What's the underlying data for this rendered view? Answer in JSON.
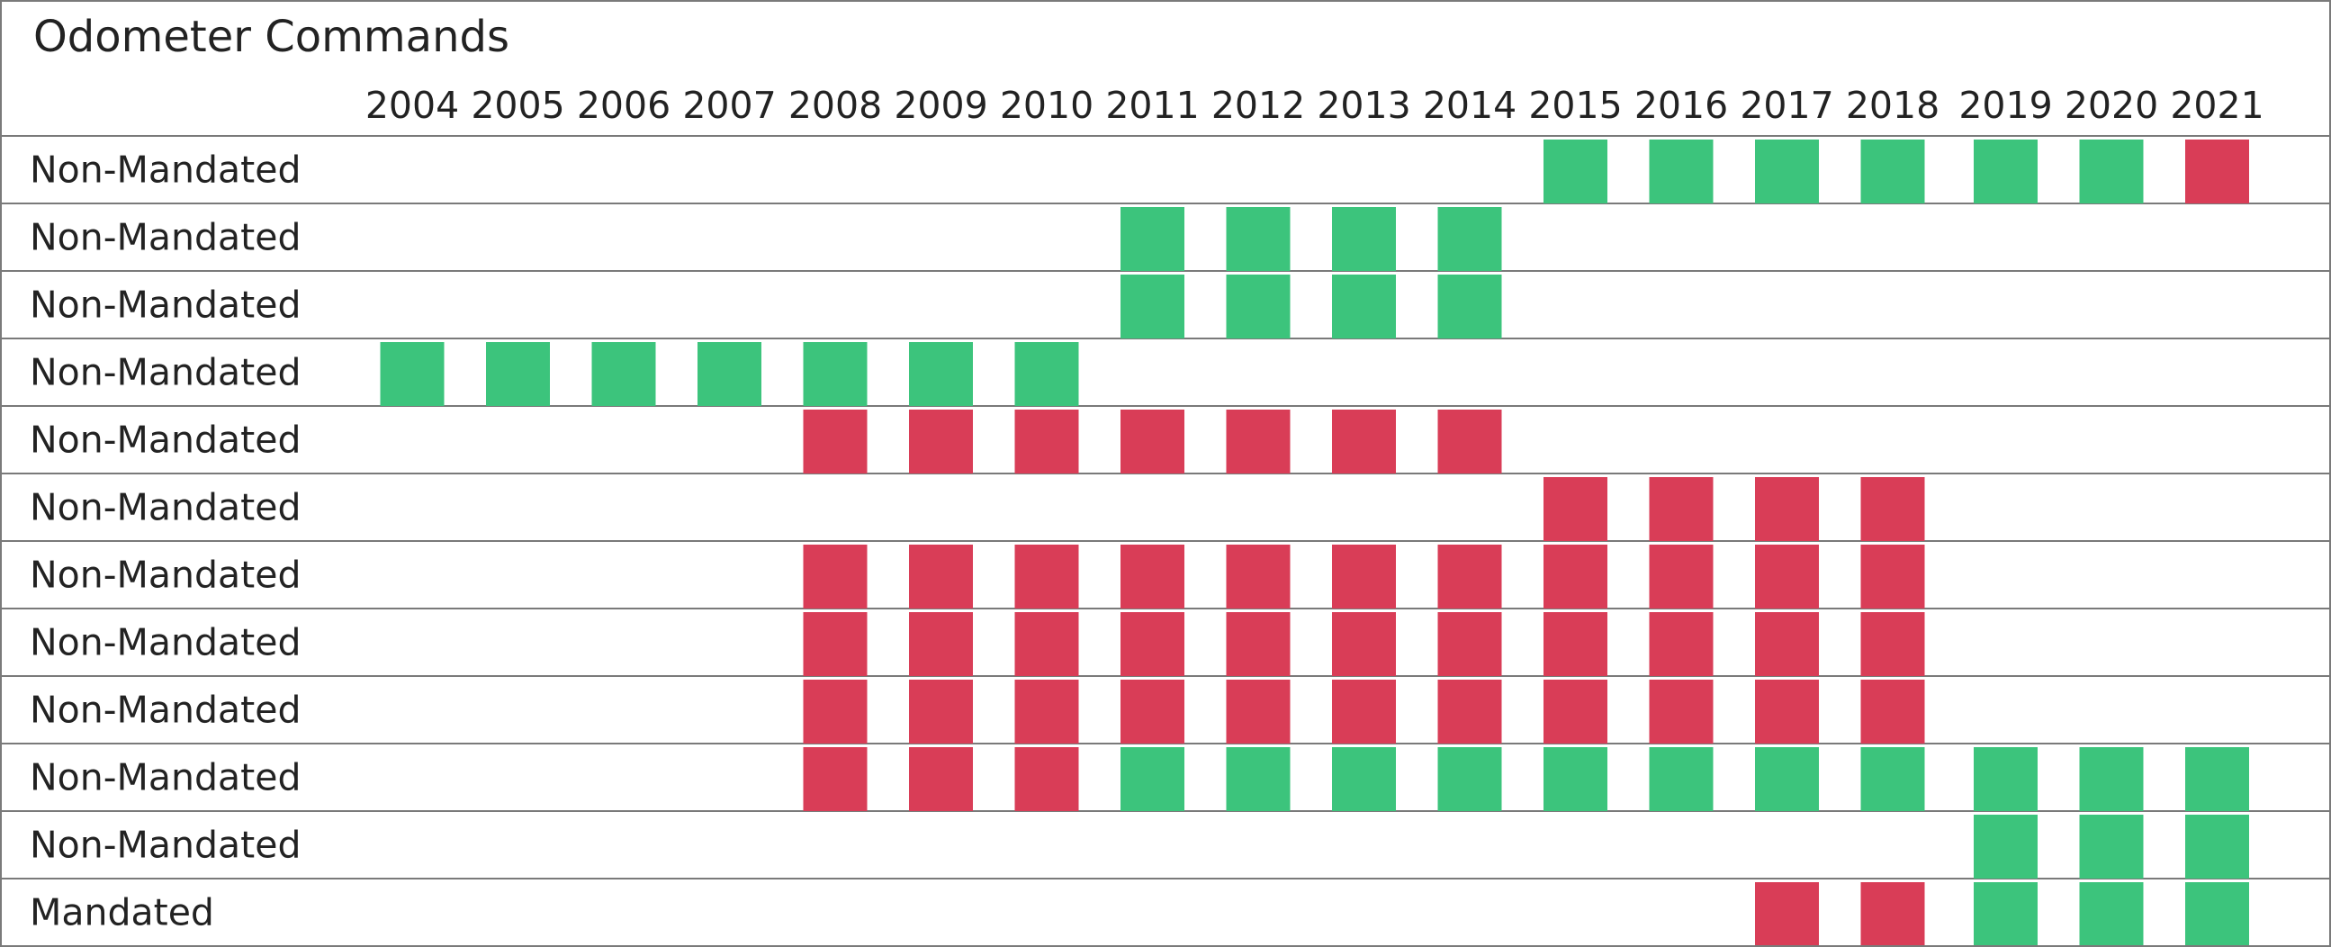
{
  "chart_data": {
    "type": "heatmap",
    "title": "Odometer Commands",
    "columns": [
      "2004",
      "2005",
      "2006",
      "2007",
      "2008",
      "2009",
      "2010",
      "2011",
      "2012",
      "2013",
      "2014",
      "2015",
      "2016",
      "2017",
      "2018",
      "2019",
      "2020",
      "2021"
    ],
    "rows": [
      {
        "label": "Non-Mandated",
        "cells": [
          "",
          "",
          "",
          "",
          "",
          "",
          "",
          "",
          "",
          "",
          "",
          "G",
          "G",
          "G",
          "G",
          "G",
          "G",
          "R"
        ]
      },
      {
        "label": "Non-Mandated",
        "cells": [
          "",
          "",
          "",
          "",
          "",
          "",
          "",
          "G",
          "G",
          "G",
          "G",
          "",
          "",
          "",
          "",
          "",
          "",
          ""
        ]
      },
      {
        "label": "Non-Mandated",
        "cells": [
          "",
          "",
          "",
          "",
          "",
          "",
          "",
          "G",
          "G",
          "G",
          "G",
          "",
          "",
          "",
          "",
          "",
          "",
          ""
        ]
      },
      {
        "label": "Non-Mandated",
        "cells": [
          "G",
          "G",
          "G",
          "G",
          "G",
          "G",
          "G",
          "",
          "",
          "",
          "",
          "",
          "",
          "",
          "",
          "",
          "",
          ""
        ]
      },
      {
        "label": "Non-Mandated",
        "cells": [
          "",
          "",
          "",
          "",
          "R",
          "R",
          "R",
          "R",
          "R",
          "R",
          "R",
          "",
          "",
          "",
          "",
          "",
          "",
          ""
        ]
      },
      {
        "label": "Non-Mandated",
        "cells": [
          "",
          "",
          "",
          "",
          "",
          "",
          "",
          "",
          "",
          "",
          "",
          "R",
          "R",
          "R",
          "R",
          "",
          "",
          ""
        ]
      },
      {
        "label": "Non-Mandated",
        "cells": [
          "",
          "",
          "",
          "",
          "R",
          "R",
          "R",
          "R",
          "R",
          "R",
          "R",
          "R",
          "R",
          "R",
          "R",
          "",
          "",
          ""
        ]
      },
      {
        "label": "Non-Mandated",
        "cells": [
          "",
          "",
          "",
          "",
          "R",
          "R",
          "R",
          "R",
          "R",
          "R",
          "R",
          "R",
          "R",
          "R",
          "R",
          "",
          "",
          ""
        ]
      },
      {
        "label": "Non-Mandated",
        "cells": [
          "",
          "",
          "",
          "",
          "R",
          "R",
          "R",
          "R",
          "R",
          "R",
          "R",
          "R",
          "R",
          "R",
          "R",
          "",
          "",
          ""
        ]
      },
      {
        "label": "Non-Mandated",
        "cells": [
          "",
          "",
          "",
          "",
          "R",
          "R",
          "R",
          "G",
          "G",
          "G",
          "G",
          "G",
          "G",
          "G",
          "G",
          "G",
          "G",
          "G"
        ]
      },
      {
        "label": "Non-Mandated",
        "cells": [
          "",
          "",
          "",
          "",
          "",
          "",
          "",
          "",
          "",
          "",
          "",
          "",
          "",
          "",
          "",
          "G",
          "G",
          "G"
        ]
      },
      {
        "label": "Mandated",
        "cells": [
          "",
          "",
          "",
          "",
          "",
          "",
          "",
          "",
          "",
          "",
          "",
          "",
          "",
          "R",
          "R",
          "G",
          "G",
          "G"
        ]
      }
    ],
    "colors": {
      "G": "#3cc47c",
      "R": "#d93d57"
    },
    "grid": true
  }
}
